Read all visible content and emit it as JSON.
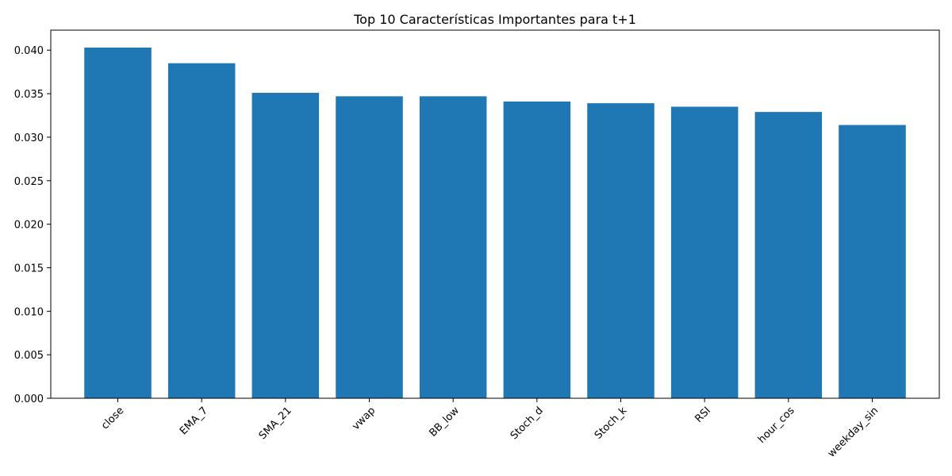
{
  "chart_data": {
    "type": "bar",
    "title": "Top 10 Características Importantes para t+1",
    "xlabel": "",
    "ylabel": "",
    "categories": [
      "close",
      "EMA_7",
      "SMA_21",
      "vwap",
      "BB_low",
      "Stoch_d",
      "Stoch_k",
      "RSI",
      "hour_cos",
      "weekday_sin"
    ],
    "values": [
      0.0403,
      0.0385,
      0.0351,
      0.0347,
      0.0347,
      0.0341,
      0.0339,
      0.0335,
      0.0329,
      0.0314
    ],
    "ylim": [
      0,
      0.0423
    ],
    "yticks": [
      0.0,
      0.005,
      0.01,
      0.015,
      0.02,
      0.025,
      0.03,
      0.035,
      0.04
    ],
    "ytick_labels": [
      "0.000",
      "0.005",
      "0.010",
      "0.015",
      "0.020",
      "0.025",
      "0.030",
      "0.035",
      "0.040"
    ],
    "bar_color": "#1f77b4",
    "grid": false,
    "xtick_rotation_deg": 45
  }
}
